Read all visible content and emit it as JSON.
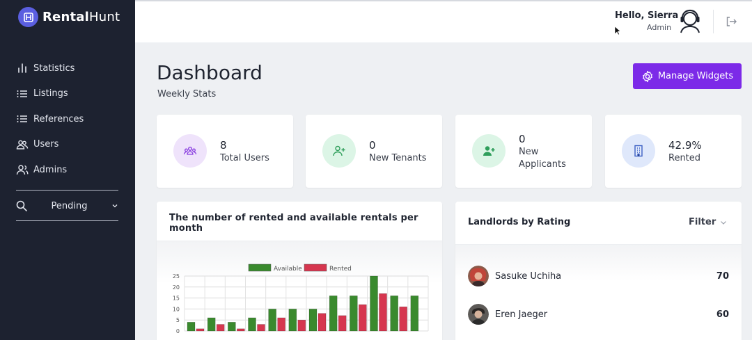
{
  "app": {
    "brand_bold": "Rental",
    "brand_light": "Hunt"
  },
  "sidebar": {
    "items": [
      {
        "label": "Statistics",
        "icon": "bar-chart-icon"
      },
      {
        "label": "Listings",
        "icon": "list-icon"
      },
      {
        "label": "References",
        "icon": "list-icon"
      },
      {
        "label": "Users",
        "icon": "users-icon"
      },
      {
        "label": "Admins",
        "icon": "admins-icon"
      }
    ],
    "pending_label": "Pending"
  },
  "header": {
    "greeting": "Hello, Sierra",
    "role": "Admin"
  },
  "page": {
    "title": "Dashboard",
    "subtitle": "Weekly Stats",
    "manage_button": "Manage Widgets"
  },
  "stats": [
    {
      "value": "8",
      "label": "Total Users",
      "icon": "users-group-icon",
      "bg": "#efe3fb",
      "fg": "#8a3fe0"
    },
    {
      "value": "0",
      "label": "New Tenants",
      "icon": "user-plus-icon",
      "bg": "#dcf5e6",
      "fg": "#2f9e5b"
    },
    {
      "value": "0",
      "label_line1": "New",
      "label_line2": "Applicants",
      "icon": "user-add-icon",
      "bg": "#dcf5e6",
      "fg": "#2f9e5b"
    },
    {
      "value": "42.9%",
      "label": "Rented",
      "icon": "building-icon",
      "bg": "#dfe8fb",
      "fg": "#3b5fc4"
    }
  ],
  "chart_data": {
    "type": "bar",
    "title": "The number of rented and available rentals per month",
    "categories": [
      "",
      "",
      "",
      "",
      "",
      "",
      "",
      "",
      "",
      "",
      "",
      ""
    ],
    "series": [
      {
        "name": "Available",
        "color": "#3a8a2e",
        "values": [
          4,
          6,
          4,
          6,
          10,
          10,
          10,
          16,
          16,
          25,
          16,
          16
        ]
      },
      {
        "name": "Rented",
        "color": "#d6364f",
        "values": [
          1,
          3,
          1,
          3,
          6,
          5,
          8,
          7,
          12,
          17,
          11,
          0
        ]
      }
    ],
    "yticks": [
      "0",
      "5",
      "10",
      "15",
      "20",
      "25"
    ],
    "ylim": [
      0,
      25
    ],
    "grid": true,
    "legend": "top"
  },
  "landlords": {
    "title": "Landlords by Rating",
    "filter_label": "Filter",
    "rows": [
      {
        "name": "Sasuke Uchiha",
        "score": "70"
      },
      {
        "name": "Eren Jaeger",
        "score": "60"
      }
    ]
  }
}
